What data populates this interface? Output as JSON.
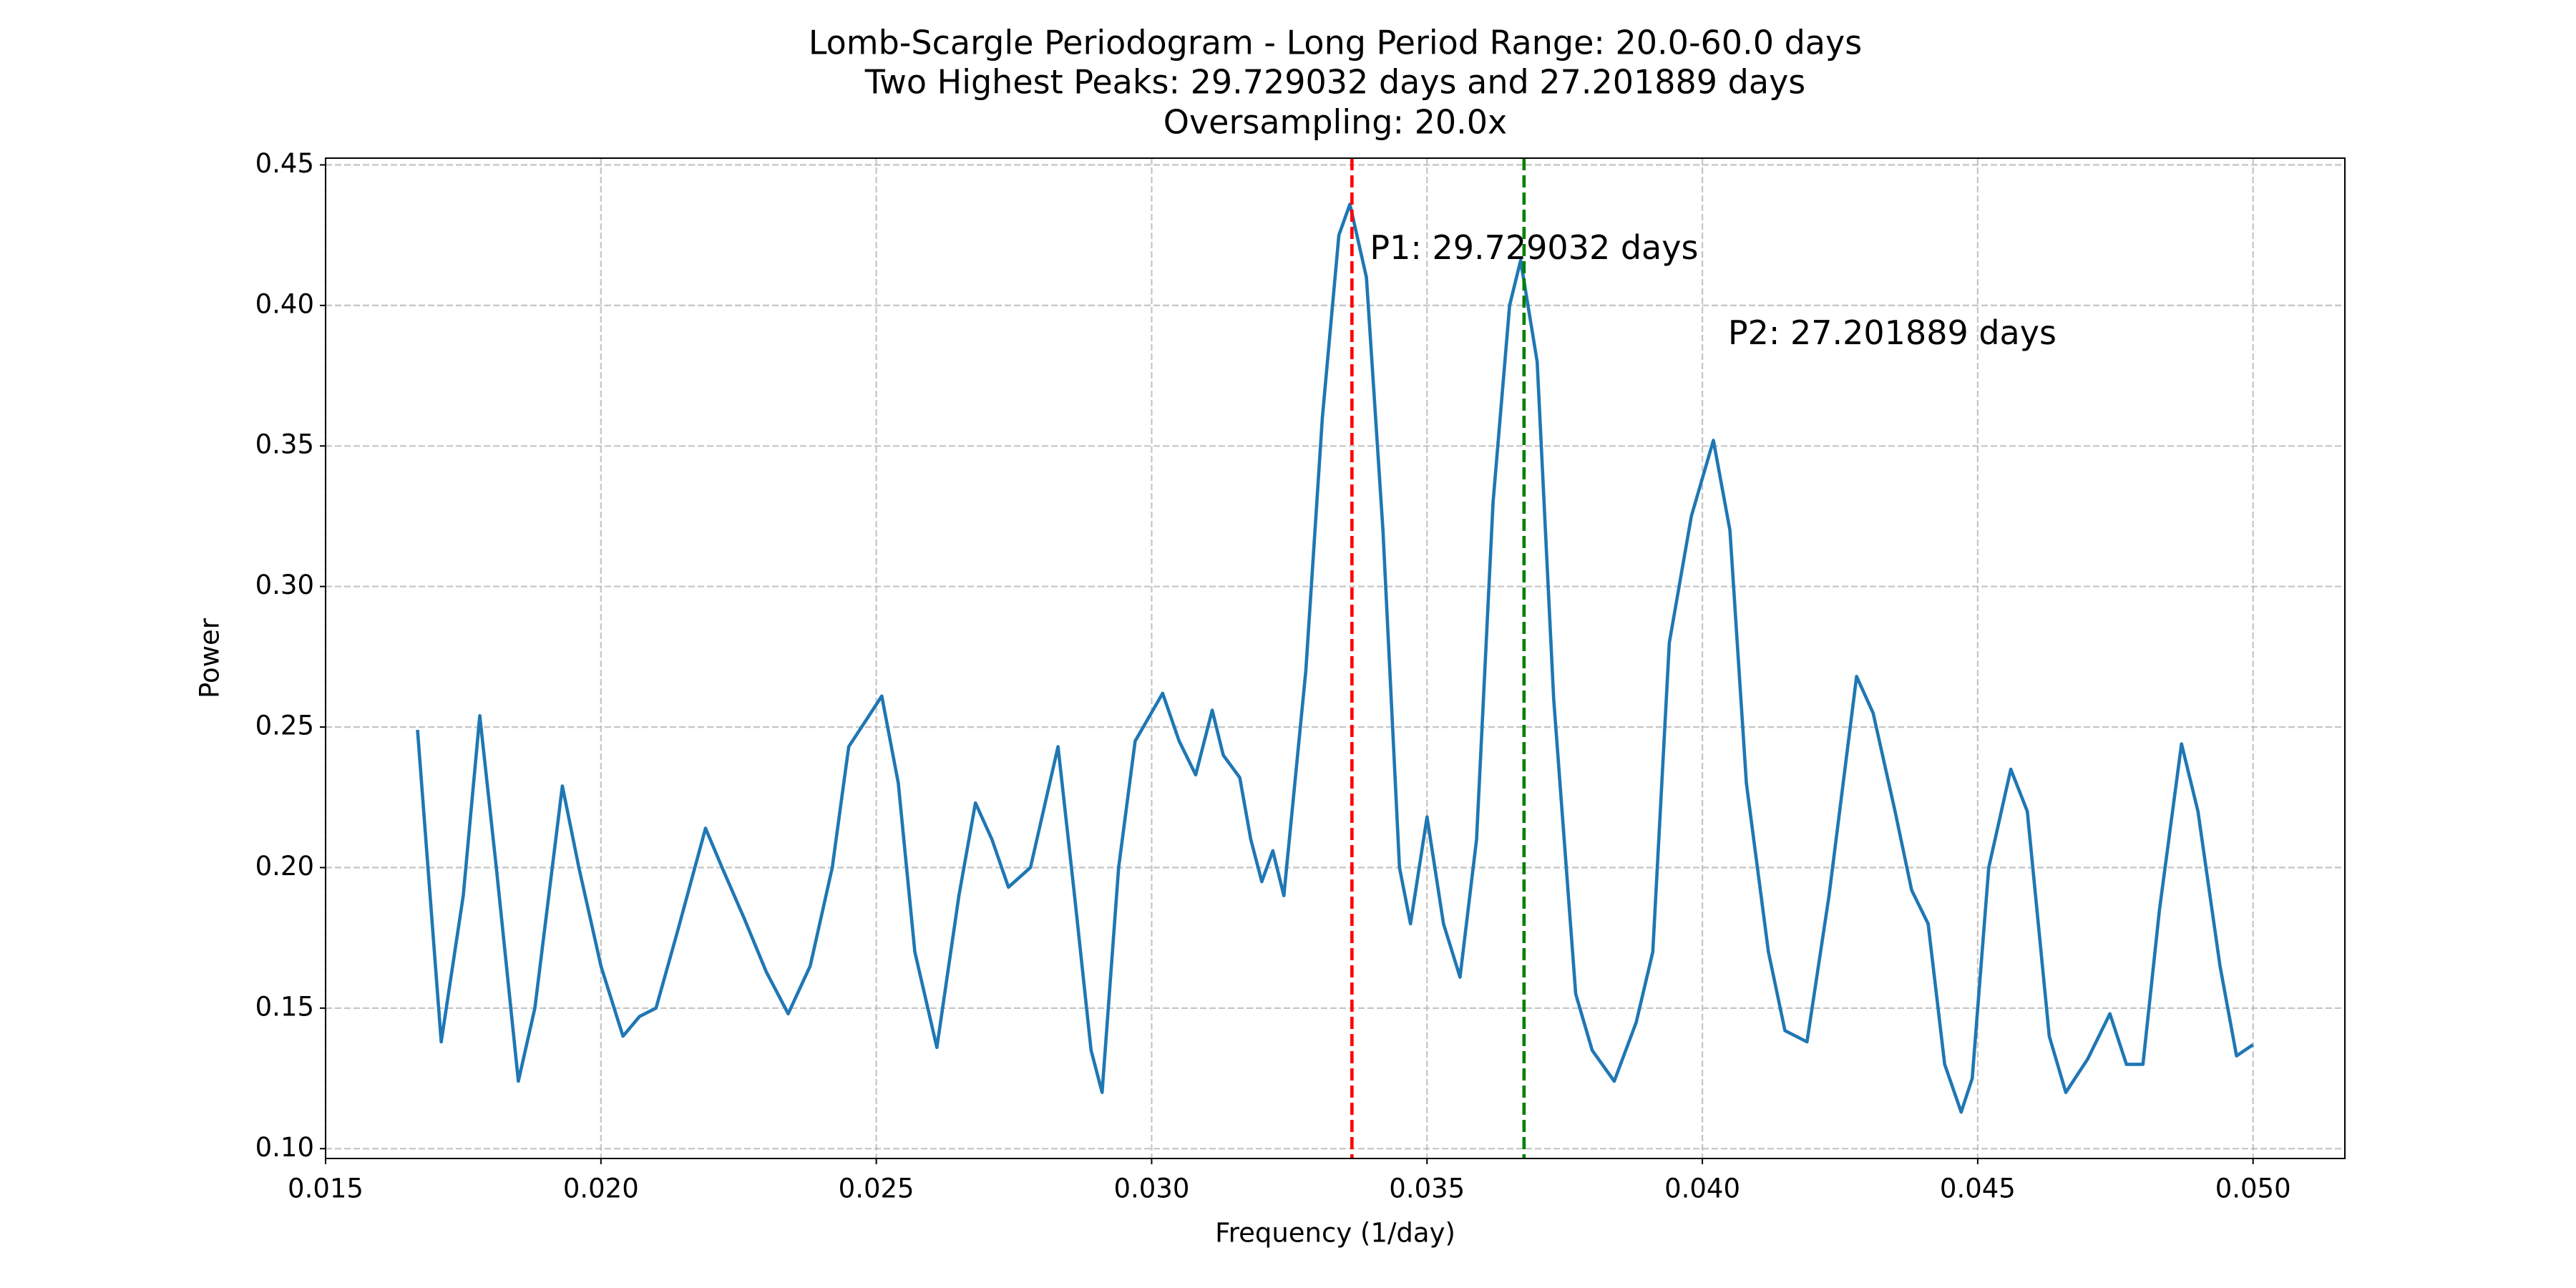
{
  "chart_data": {
    "type": "line",
    "title": [
      "Lomb-Scargle Periodogram - Long Period Range: 20.0-60.0 days",
      "Two Highest Peaks: 29.729032 days and 27.201889 days",
      "Oversampling: 20.0x"
    ],
    "x_label": "Frequency (1/day)",
    "y_label": "Power",
    "color": "#1f77b4",
    "grid": true,
    "x": [
      0.01667,
      0.0171,
      0.0175,
      0.0178,
      0.0181,
      0.0185,
      0.0188,
      0.0193,
      0.0196,
      0.02,
      0.0204,
      0.0207,
      0.021,
      0.0214,
      0.0219,
      0.0222,
      0.0226,
      0.023,
      0.0234,
      0.0238,
      0.0242,
      0.0245,
      0.0248,
      0.0251,
      0.0254,
      0.0257,
      0.0261,
      0.0265,
      0.0268,
      0.0271,
      0.0274,
      0.0278,
      0.0283,
      0.0286,
      0.0289,
      0.0291,
      0.0294,
      0.0297,
      0.0302,
      0.0305,
      0.0308,
      0.0311,
      0.0313,
      0.0316,
      0.0318,
      0.032,
      0.0322,
      0.0324,
      0.0328,
      0.0331,
      0.0334,
      0.0336,
      0.0339,
      0.0342,
      0.0345,
      0.0347,
      0.035,
      0.0353,
      0.0356,
      0.0359,
      0.0362,
      0.0365,
      0.0367,
      0.037,
      0.0373,
      0.0377,
      0.038,
      0.0384,
      0.0388,
      0.0391,
      0.0394,
      0.0398,
      0.0402,
      0.0405,
      0.0408,
      0.0412,
      0.0415,
      0.0419,
      0.0423,
      0.0428,
      0.0431,
      0.0435,
      0.0438,
      0.0441,
      0.0444,
      0.0447,
      0.0449,
      0.0452,
      0.0456,
      0.0459,
      0.0463,
      0.0466,
      0.047,
      0.0474,
      0.0477,
      0.048,
      0.0483,
      0.0487,
      0.049,
      0.0494,
      0.0497,
      0.05
    ],
    "values": [
      0.249,
      0.138,
      0.19,
      0.254,
      0.2,
      0.124,
      0.15,
      0.229,
      0.2,
      0.165,
      0.14,
      0.147,
      0.15,
      0.178,
      0.214,
      0.2,
      0.182,
      0.163,
      0.148,
      0.165,
      0.2,
      0.243,
      0.252,
      0.261,
      0.23,
      0.17,
      0.136,
      0.19,
      0.223,
      0.21,
      0.193,
      0.2,
      0.243,
      0.19,
      0.135,
      0.12,
      0.2,
      0.245,
      0.262,
      0.245,
      0.233,
      0.256,
      0.24,
      0.232,
      0.21,
      0.195,
      0.206,
      0.19,
      0.27,
      0.36,
      0.425,
      0.436,
      0.41,
      0.32,
      0.2,
      0.18,
      0.218,
      0.18,
      0.161,
      0.21,
      0.33,
      0.4,
      0.416,
      0.38,
      0.26,
      0.155,
      0.135,
      0.124,
      0.145,
      0.17,
      0.28,
      0.325,
      0.352,
      0.32,
      0.23,
      0.17,
      0.142,
      0.138,
      0.19,
      0.268,
      0.255,
      0.22,
      0.192,
      0.18,
      0.13,
      0.113,
      0.125,
      0.2,
      0.235,
      0.22,
      0.14,
      0.12,
      0.132,
      0.148,
      0.13,
      0.13,
      0.185,
      0.244,
      0.22,
      0.165,
      0.133,
      0.137
    ],
    "vlines": [
      {
        "x": 0.033637,
        "color": "#ff0000",
        "label": "P1: 29.729032 days"
      },
      {
        "x": 0.036762,
        "color": "#008000",
        "label": "P2: 27.201889 days"
      }
    ],
    "xlim": [
      0.015,
      0.051667
    ],
    "ylim": [
      0.0965,
      0.4524
    ],
    "xticks": [
      0.015,
      {
        "value": 0.02,
        "label": "0.020"
      },
      0.025,
      {
        "value": 0.03,
        "label": "0.030"
      },
      0.035,
      {
        "value": 0.04,
        "label": "0.040"
      },
      0.045,
      {
        "value": 0.05,
        "label": "0.050"
      }
    ],
    "yticks": [
      {
        "value": 0.1,
        "label": "0.10"
      },
      0.15,
      {
        "value": 0.2,
        "label": "0.20"
      },
      0.25,
      {
        "value": 0.3,
        "label": "0.30"
      },
      0.35,
      {
        "value": 0.4,
        "label": "0.40"
      },
      0.45
    ]
  }
}
